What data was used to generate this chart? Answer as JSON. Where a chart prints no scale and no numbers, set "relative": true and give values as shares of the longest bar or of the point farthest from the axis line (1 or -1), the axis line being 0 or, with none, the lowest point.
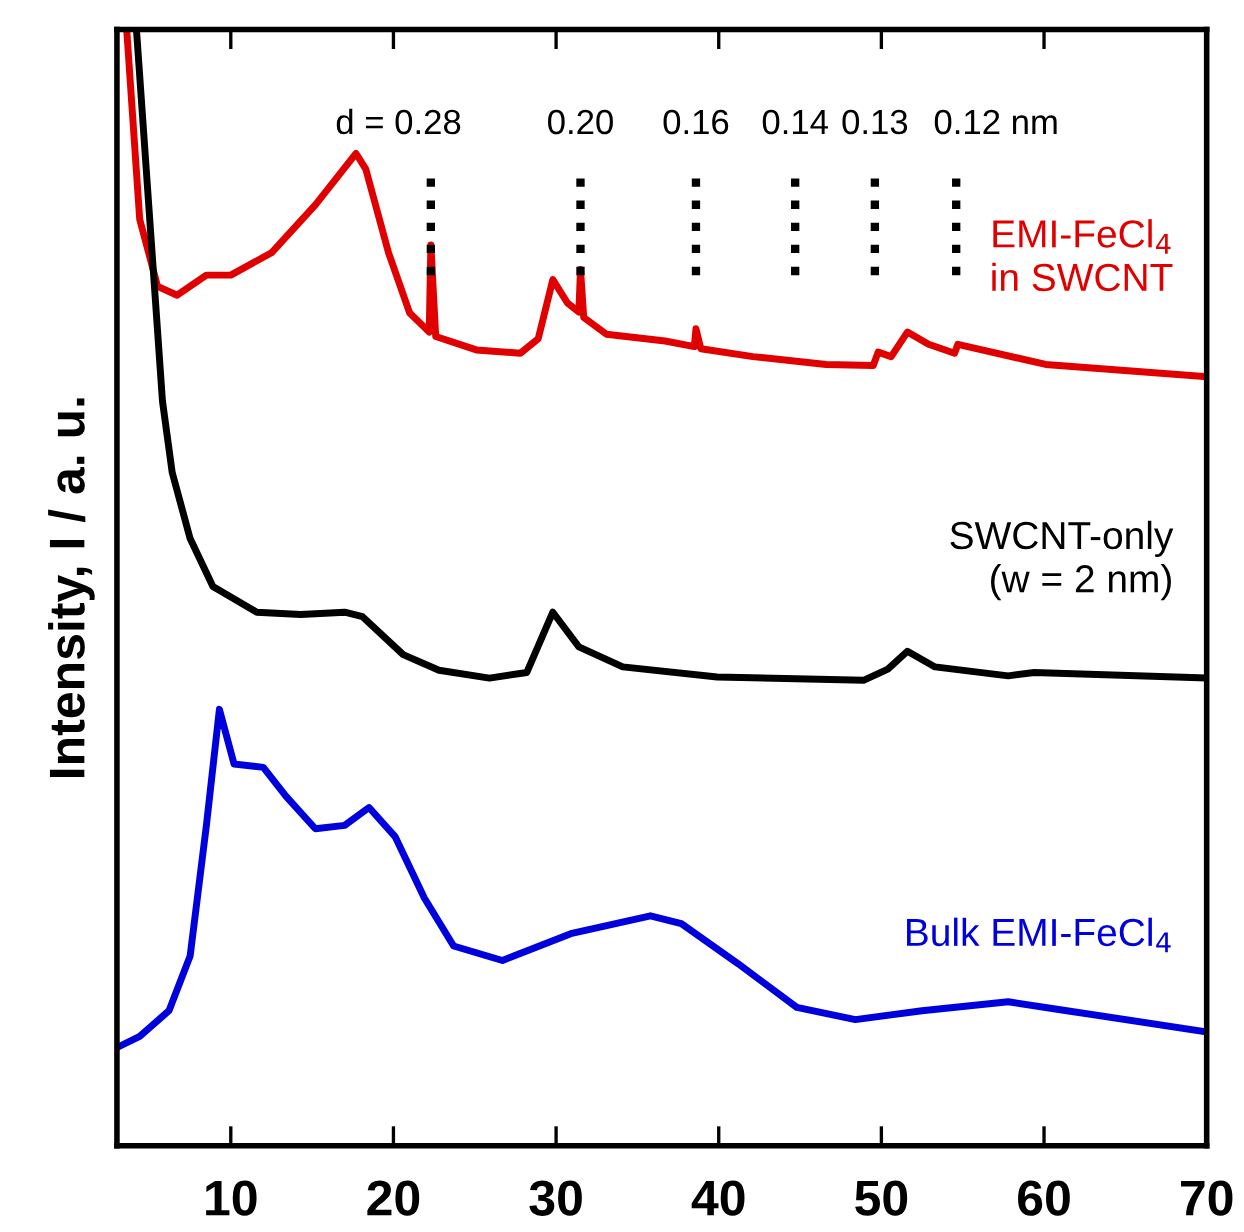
{
  "chart_data": {
    "type": "line",
    "relative": true,
    "ylabel": "Intensity, I / a. u.",
    "xlim": [
      3,
      70
    ],
    "xticks": [
      10,
      20,
      30,
      40,
      50,
      60,
      70
    ],
    "grid": false,
    "marker": "none",
    "line_style": "solid",
    "series": [
      {
        "name": "EMI-FeCl$_{4}$\nin SWCNT",
        "color": "#e00000",
        "x": [
          3.6,
          4.4,
          5.5,
          6.7,
          8.5,
          10.0,
          12.5,
          15.2,
          17.7,
          18.3,
          19.7,
          21.0,
          22.2,
          22.3,
          22.6,
          25.1,
          27.8,
          28.9,
          29.8,
          30.7,
          31.4,
          31.5,
          31.7,
          33.1,
          36.7,
          38.5,
          38.6,
          38.9,
          42.1,
          46.6,
          49.5,
          49.8,
          50.6,
          51.6,
          52.9,
          54.5,
          54.7,
          60.1,
          70.0
        ],
        "values": [
          1.0,
          0.83,
          0.77,
          0.762,
          0.78,
          0.78,
          0.8,
          0.843,
          0.889,
          0.875,
          0.8,
          0.746,
          0.729,
          0.807,
          0.725,
          0.713,
          0.71,
          0.723,
          0.776,
          0.755,
          0.747,
          0.785,
          0.742,
          0.727,
          0.721,
          0.716,
          0.732,
          0.714,
          0.707,
          0.7,
          0.699,
          0.711,
          0.707,
          0.729,
          0.718,
          0.71,
          0.718,
          0.7,
          0.689
        ]
      },
      {
        "name": "SWCNT-only\n(w = 2 nm)",
        "color": "#000000",
        "x": [
          4.2,
          5.8,
          6.4,
          7.5,
          8.9,
          11.6,
          14.3,
          17.0,
          18.1,
          20.6,
          22.8,
          25.9,
          28.2,
          29.8,
          31.4,
          34.1,
          39.9,
          48.9,
          50.4,
          51.6,
          53.3,
          57.8,
          59.4,
          70.0
        ],
        "values": [
          1.0,
          0.667,
          0.603,
          0.544,
          0.501,
          0.478,
          0.476,
          0.478,
          0.474,
          0.44,
          0.426,
          0.419,
          0.424,
          0.478,
          0.447,
          0.429,
          0.42,
          0.417,
          0.427,
          0.443,
          0.429,
          0.421,
          0.424,
          0.419
        ]
      },
      {
        "name": "Bulk EMI-FeCl$_{4}$",
        "color": "#0000dd",
        "x": [
          3.0,
          4.4,
          6.2,
          7.5,
          8.5,
          9.3,
          10.2,
          12.0,
          13.4,
          15.2,
          17.0,
          18.5,
          20.1,
          21.9,
          23.7,
          26.7,
          30.9,
          35.8,
          37.7,
          41.2,
          44.8,
          48.4,
          52.5,
          57.8,
          61.4,
          70.0
        ],
        "values": [
          0.088,
          0.098,
          0.121,
          0.17,
          0.287,
          0.391,
          0.342,
          0.339,
          0.313,
          0.284,
          0.287,
          0.303,
          0.277,
          0.222,
          0.179,
          0.166,
          0.19,
          0.206,
          0.199,
          0.163,
          0.124,
          0.113,
          0.121,
          0.129,
          0.121,
          0.102
        ]
      }
    ],
    "ref_lines": [
      {
        "axis": "x",
        "value": 22.3,
        "color": "#000000",
        "line_style": "dotted"
      },
      {
        "axis": "x",
        "value": 31.5,
        "color": "#000000",
        "line_style": "dotted"
      },
      {
        "axis": "x",
        "value": 38.6,
        "color": "#000000",
        "line_style": "dotted"
      },
      {
        "axis": "x",
        "value": 44.7,
        "color": "#000000",
        "line_style": "dotted"
      },
      {
        "axis": "x",
        "value": 49.6,
        "color": "#000000",
        "line_style": "dotted"
      },
      {
        "axis": "x",
        "value": 54.6,
        "color": "#000000",
        "line_style": "dotted"
      }
    ],
    "annotations": [
      "d = 0.28",
      "0.20",
      "0.16",
      "0.14",
      "0.13",
      "0.12 nm"
    ]
  }
}
